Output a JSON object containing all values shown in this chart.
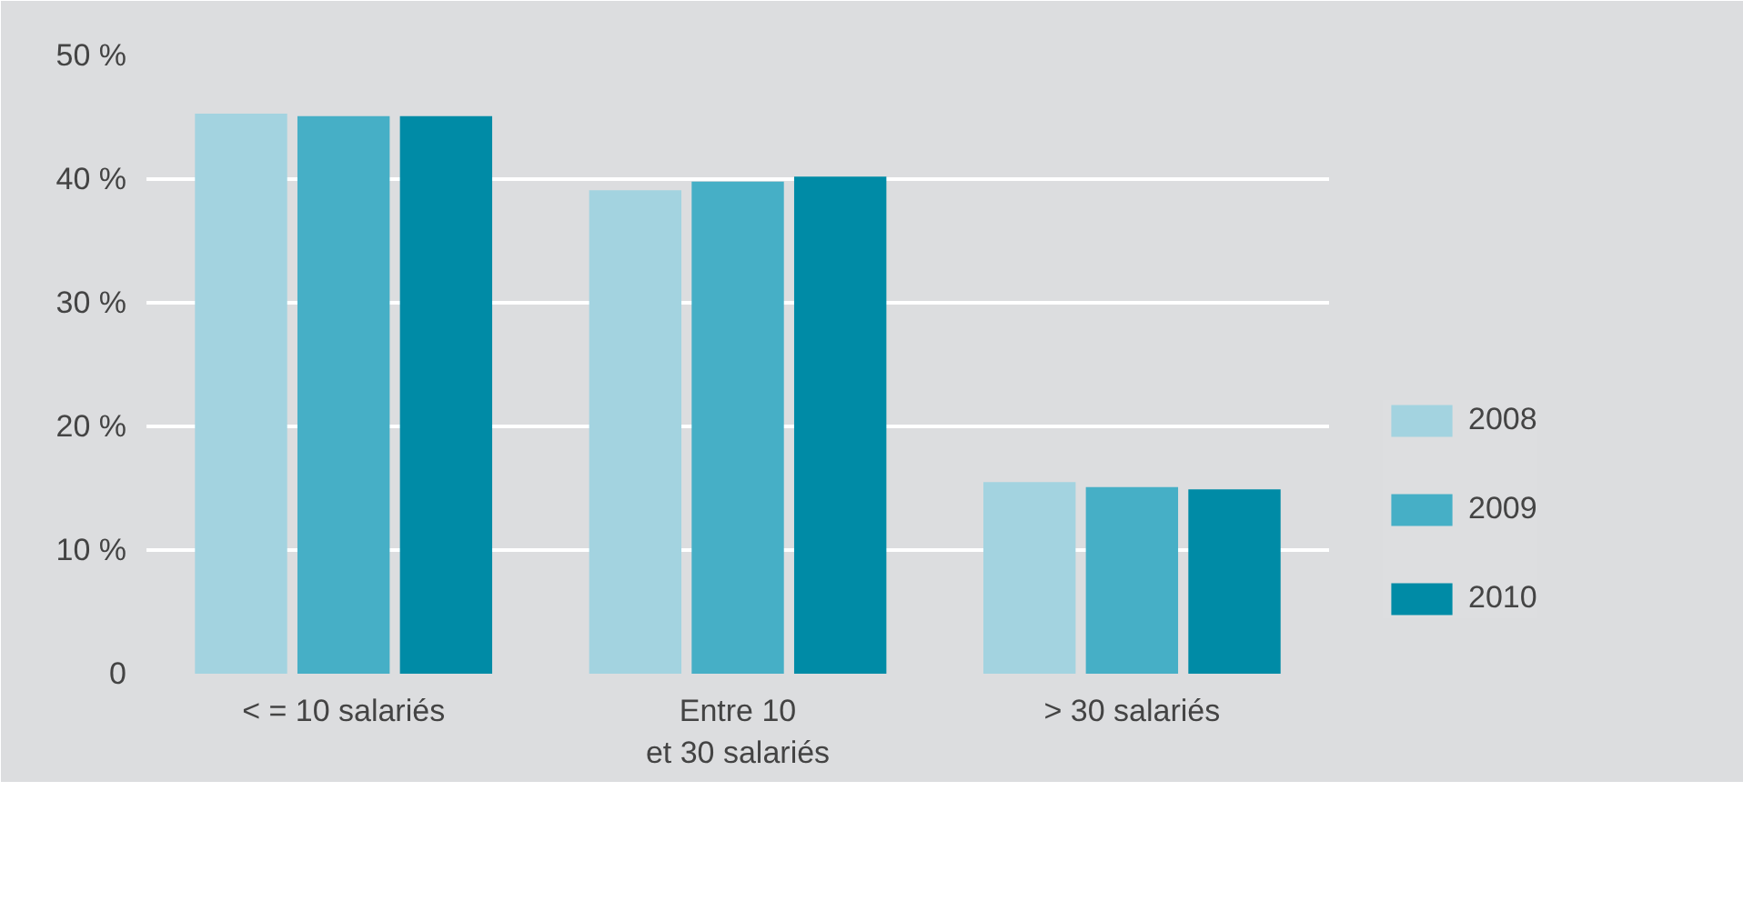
{
  "chart_data": {
    "type": "bar",
    "categories": [
      "< = 10 salariés",
      "Entre 10\net 30 salariés",
      "> 30 salariés"
    ],
    "series": [
      {
        "name": "2008",
        "color": "#a3d3e0",
        "values": [
          45.3,
          39.1,
          15.5
        ]
      },
      {
        "name": "2009",
        "color": "#46afc6",
        "values": [
          45.1,
          39.8,
          15.1
        ]
      },
      {
        "name": "2010",
        "color": "#008ba6",
        "values": [
          45.1,
          40.2,
          14.9
        ]
      }
    ],
    "ylim": [
      0,
      50
    ],
    "yticks": [
      {
        "value": 0,
        "label": "0"
      },
      {
        "value": 10,
        "label": "10 %"
      },
      {
        "value": 20,
        "label": "20 %"
      },
      {
        "value": 30,
        "label": "30 %"
      },
      {
        "value": 40,
        "label": "40 %"
      },
      {
        "value": 50,
        "label": "50 %"
      }
    ],
    "grid": "y",
    "legend": "right"
  }
}
